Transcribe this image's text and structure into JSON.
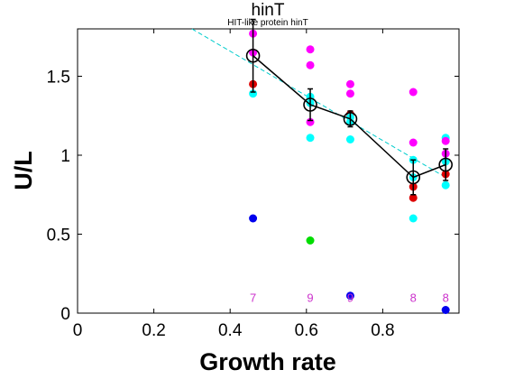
{
  "chart_data": {
    "type": "scatter",
    "title": "hinT",
    "subtitle": "HIT-like protein hinT",
    "xlabel": "Growth rate",
    "ylabel": "U/L",
    "xlim": [
      0,
      1.0
    ],
    "ylim": [
      0,
      1.8
    ],
    "xticks": [
      "0",
      "0.2",
      "0.4",
      "0.6",
      "0.8"
    ],
    "xtick_values": [
      0,
      0.2,
      0.4,
      0.6,
      0.8
    ],
    "yticks": [
      "0",
      "0.5",
      "1",
      "1.5"
    ],
    "ytick_values": [
      0,
      0.5,
      1,
      1.5
    ],
    "grid": false,
    "colors": {
      "magenta": "#ff00ff",
      "cyan": "#00ffff",
      "red": "#dd0000",
      "blue": "#0000ee",
      "green": "#00dd00",
      "mean": "#000000",
      "fit": "#00cccc",
      "count": "#cc33cc"
    },
    "scatter_points": [
      {
        "x": 0.46,
        "y": 1.77,
        "color": "magenta"
      },
      {
        "x": 0.46,
        "y": 1.65,
        "color": "magenta"
      },
      {
        "x": 0.46,
        "y": 1.45,
        "color": "red"
      },
      {
        "x": 0.46,
        "y": 1.39,
        "color": "cyan"
      },
      {
        "x": 0.46,
        "y": 0.6,
        "color": "blue"
      },
      {
        "x": 0.61,
        "y": 1.67,
        "color": "magenta"
      },
      {
        "x": 0.61,
        "y": 1.57,
        "color": "magenta"
      },
      {
        "x": 0.61,
        "y": 1.37,
        "color": "cyan"
      },
      {
        "x": 0.61,
        "y": 1.33,
        "color": "cyan"
      },
      {
        "x": 0.61,
        "y": 1.21,
        "color": "magenta"
      },
      {
        "x": 0.61,
        "y": 1.11,
        "color": "cyan"
      },
      {
        "x": 0.61,
        "y": 0.46,
        "color": "green"
      },
      {
        "x": 0.715,
        "y": 1.45,
        "color": "magenta"
      },
      {
        "x": 0.715,
        "y": 1.39,
        "color": "magenta"
      },
      {
        "x": 0.715,
        "y": 1.26,
        "color": "red"
      },
      {
        "x": 0.715,
        "y": 1.24,
        "color": "cyan"
      },
      {
        "x": 0.715,
        "y": 1.21,
        "color": "cyan"
      },
      {
        "x": 0.715,
        "y": 1.1,
        "color": "cyan"
      },
      {
        "x": 0.715,
        "y": 0.11,
        "color": "blue"
      },
      {
        "x": 0.88,
        "y": 1.4,
        "color": "magenta"
      },
      {
        "x": 0.88,
        "y": 1.08,
        "color": "magenta"
      },
      {
        "x": 0.88,
        "y": 0.97,
        "color": "cyan"
      },
      {
        "x": 0.88,
        "y": 0.86,
        "color": "cyan"
      },
      {
        "x": 0.88,
        "y": 0.8,
        "color": "red"
      },
      {
        "x": 0.88,
        "y": 0.73,
        "color": "red"
      },
      {
        "x": 0.88,
        "y": 0.6,
        "color": "cyan"
      },
      {
        "x": 0.965,
        "y": 1.11,
        "color": "cyan"
      },
      {
        "x": 0.965,
        "y": 1.09,
        "color": "magenta"
      },
      {
        "x": 0.965,
        "y": 1.01,
        "color": "magenta"
      },
      {
        "x": 0.965,
        "y": 0.96,
        "color": "cyan"
      },
      {
        "x": 0.965,
        "y": 0.88,
        "color": "red"
      },
      {
        "x": 0.965,
        "y": 0.81,
        "color": "cyan"
      },
      {
        "x": 0.965,
        "y": 0.02,
        "color": "blue"
      }
    ],
    "mean_series": {
      "x": [
        0.46,
        0.61,
        0.715,
        0.88,
        0.965
      ],
      "y": [
        1.63,
        1.32,
        1.23,
        0.86,
        0.94
      ],
      "err": [
        0.23,
        0.1,
        0.05,
        0.11,
        0.1
      ]
    },
    "fit_line": {
      "x": [
        0.3,
        0.965
      ],
      "y": [
        1.8,
        0.86
      ]
    },
    "counts": [
      {
        "x": 0.46,
        "label": "7"
      },
      {
        "x": 0.61,
        "label": "9"
      },
      {
        "x": 0.715,
        "label": "9"
      },
      {
        "x": 0.88,
        "label": "8"
      },
      {
        "x": 0.965,
        "label": "8"
      }
    ],
    "count_y": 0.1
  }
}
